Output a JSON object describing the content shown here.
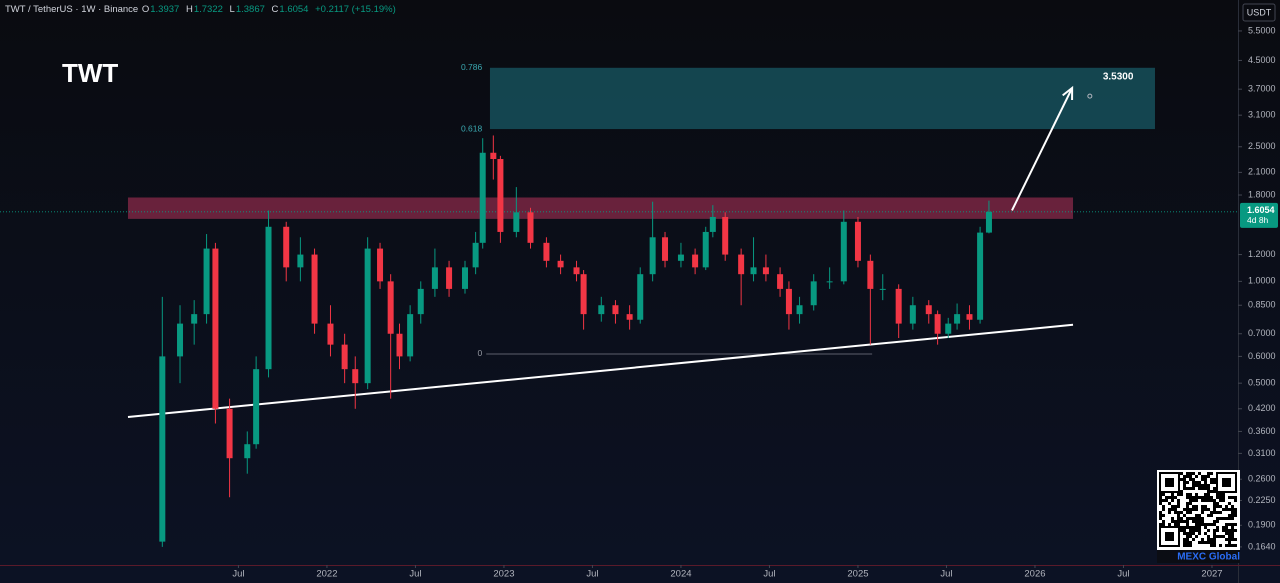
{
  "chart_data": {
    "type": "candlestick",
    "title": "TWT / TetherUS · 1W · Binance",
    "legend": {
      "open_label": "O",
      "open": 1.3937,
      "high_label": "H",
      "high": 1.7322,
      "low_label": "L",
      "low": 1.3867,
      "close_label": "C",
      "close": 1.6054,
      "change": "+0.2117 (+15.19%)"
    },
    "watermark": "TWT",
    "currency": "USDT",
    "last_price": 1.6054,
    "countdown": "4d 8h",
    "brand": "MEXC Global",
    "up_color": "#089981",
    "down_color": "#f23645",
    "log_scale": true,
    "x": [
      2021.07,
      2021.17,
      2021.25,
      2021.32,
      2021.37,
      2021.45,
      2021.55,
      2021.6,
      2021.67,
      2021.77,
      2021.85,
      2021.93,
      2022.02,
      2022.1,
      2022.16,
      2022.23,
      2022.3,
      2022.36,
      2022.41,
      2022.47,
      2022.53,
      2022.61,
      2022.69,
      2022.78,
      2022.84,
      2022.88,
      2022.94,
      2022.98,
      2023.07,
      2023.15,
      2023.24,
      2023.32,
      2023.41,
      2023.45,
      2023.55,
      2023.63,
      2023.71,
      2023.77,
      2023.84,
      2023.91,
      2024.0,
      2024.08,
      2024.14,
      2024.18,
      2024.25,
      2024.34,
      2024.41,
      2024.48,
      2024.56,
      2024.61,
      2024.67,
      2024.75,
      2024.84,
      2024.92,
      2025.0,
      2025.07,
      2025.14,
      2025.23,
      2025.31,
      2025.4,
      2025.45,
      2025.51,
      2025.56,
      2025.63,
      2025.69,
      2025.74
    ],
    "open": [
      0.17,
      0.6,
      0.75,
      0.8,
      1.25,
      0.42,
      0.3,
      0.33,
      0.55,
      1.45,
      1.1,
      1.2,
      0.75,
      0.65,
      0.55,
      0.5,
      1.25,
      1.0,
      0.7,
      0.6,
      0.8,
      0.95,
      1.1,
      0.95,
      1.1,
      1.3,
      2.4,
      2.3,
      1.4,
      1.6,
      1.3,
      1.15,
      1.1,
      1.05,
      0.8,
      0.85,
      0.8,
      0.77,
      1.05,
      1.35,
      1.15,
      1.2,
      1.1,
      1.4,
      1.55,
      1.2,
      1.05,
      1.1,
      1.05,
      0.95,
      0.8,
      0.85,
      1.0,
      1.0,
      1.5,
      1.15,
      0.95,
      0.95,
      0.75,
      0.85,
      0.8,
      0.7,
      0.75,
      0.8,
      0.77,
      1.3937
    ],
    "high": [
      0.9,
      0.85,
      0.88,
      1.38,
      1.3,
      0.45,
      0.36,
      0.6,
      1.62,
      1.5,
      1.35,
      1.25,
      0.85,
      0.7,
      0.6,
      1.35,
      1.3,
      1.05,
      0.75,
      0.85,
      1.0,
      1.25,
      1.15,
      1.15,
      1.4,
      2.65,
      2.7,
      2.35,
      1.9,
      1.65,
      1.35,
      1.2,
      1.15,
      1.08,
      0.9,
      0.88,
      0.85,
      1.1,
      1.72,
      1.4,
      1.3,
      1.25,
      1.45,
      1.68,
      1.6,
      1.25,
      1.35,
      1.2,
      1.1,
      1.0,
      0.9,
      1.05,
      1.1,
      1.62,
      1.55,
      1.2,
      1.05,
      0.98,
      0.9,
      0.88,
      0.82,
      0.78,
      0.86,
      0.85,
      1.45,
      1.7322
    ],
    "low": [
      0.164,
      0.5,
      0.65,
      0.75,
      0.38,
      0.23,
      0.27,
      0.32,
      0.52,
      1.0,
      1.0,
      0.7,
      0.6,
      0.5,
      0.42,
      0.48,
      0.95,
      0.45,
      0.55,
      0.58,
      0.75,
      0.9,
      0.9,
      0.92,
      1.05,
      1.25,
      2.0,
      1.3,
      1.35,
      1.25,
      1.1,
      1.05,
      1.0,
      0.72,
      0.76,
      0.75,
      0.72,
      0.75,
      1.0,
      1.1,
      1.1,
      1.05,
      1.08,
      1.35,
      1.15,
      0.85,
      1.0,
      1.0,
      0.9,
      0.72,
      0.75,
      0.82,
      0.95,
      0.98,
      1.1,
      0.65,
      0.88,
      0.68,
      0.72,
      0.75,
      0.65,
      0.68,
      0.72,
      0.72,
      0.75,
      1.3867
    ],
    "close": [
      0.6,
      0.75,
      0.8,
      1.25,
      0.42,
      0.3,
      0.33,
      0.55,
      1.45,
      1.1,
      1.2,
      0.75,
      0.65,
      0.55,
      0.5,
      1.25,
      1.0,
      0.7,
      0.6,
      0.8,
      0.95,
      1.1,
      0.95,
      1.1,
      1.3,
      2.4,
      2.3,
      1.4,
      1.6,
      1.3,
      1.15,
      1.1,
      1.05,
      0.8,
      0.85,
      0.8,
      0.77,
      1.05,
      1.35,
      1.15,
      1.2,
      1.1,
      1.4,
      1.55,
      1.2,
      1.05,
      1.1,
      1.05,
      0.95,
      0.8,
      0.85,
      1.0,
      1.0,
      1.5,
      1.15,
      0.95,
      0.95,
      0.75,
      0.85,
      0.8,
      0.7,
      0.75,
      0.8,
      0.77,
      1.3937,
      1.6054
    ],
    "xlim": [
      2020.153,
      2027.147
    ],
    "xticks": [
      {
        "value": 2021.5,
        "label": "Jul"
      },
      2022,
      {
        "value": 2022.5,
        "label": "Jul"
      },
      2023,
      {
        "value": 2023.5,
        "label": "Jul"
      },
      2024,
      {
        "value": 2024.5,
        "label": "Jul"
      },
      2025,
      {
        "value": 2025.5,
        "label": "Jul"
      },
      2026,
      {
        "value": 2026.5,
        "label": "Jul"
      },
      2027
    ],
    "ylim": [
      0.145,
      6.79
    ],
    "yticks": [
      {
        "value": 5.5,
        "label": "5.5000"
      },
      {
        "value": 4.5,
        "label": "4.5000"
      },
      {
        "value": 3.7,
        "label": "3.7000"
      },
      {
        "value": 3.1,
        "label": "3.1000"
      },
      {
        "value": 2.5,
        "label": "2.5000"
      },
      {
        "value": 2.1,
        "label": "2.1000"
      },
      {
        "value": 1.8,
        "label": "1.8000"
      },
      {
        "value": 1.2,
        "label": "1.2000"
      },
      {
        "value": 1.0,
        "label": "1.0000"
      },
      {
        "value": 0.85,
        "label": "0.8500"
      },
      {
        "value": 0.7,
        "label": "0.7000"
      },
      {
        "value": 0.6,
        "label": "0.6000"
      },
      {
        "value": 0.5,
        "label": "0.5000"
      },
      {
        "value": 0.42,
        "label": "0.4200"
      },
      {
        "value": 0.36,
        "label": "0.3600"
      },
      {
        "value": 0.31,
        "label": "0.3100"
      },
      {
        "value": 0.26,
        "label": "0.2600"
      },
      {
        "value": 0.225,
        "label": "0.2250"
      },
      {
        "value": 0.19,
        "label": "0.1900"
      },
      {
        "value": 0.164,
        "label": "0.1640"
      }
    ],
    "fib_zone": {
      "xlim": [
        2022.921,
        2026.678
      ],
      "ylim": [
        2.82,
        4.28
      ],
      "color": "#16505a"
    },
    "resistance_zone": {
      "xlim": [
        2020.876,
        2026.215
      ],
      "ylim": [
        1.53,
        1.77
      ],
      "color": "#8a2a4a"
    },
    "fib_levels": {
      "levels": [
        0.786,
        0.618,
        0
      ],
      "prices": [
        4.28,
        2.82,
        0.61
      ],
      "xlim": [
        2022.9,
        2025.08
      ]
    },
    "trendline": {
      "x": [
        2020.876,
        2026.215
      ],
      "values": [
        0.397,
        0.744
      ]
    },
    "arrow": {
      "x": [
        2025.87,
        2026.21
      ],
      "values": [
        1.62,
        3.73
      ]
    },
    "target": {
      "x": 2026.31,
      "value": 3.53,
      "label": "3.5300"
    }
  }
}
